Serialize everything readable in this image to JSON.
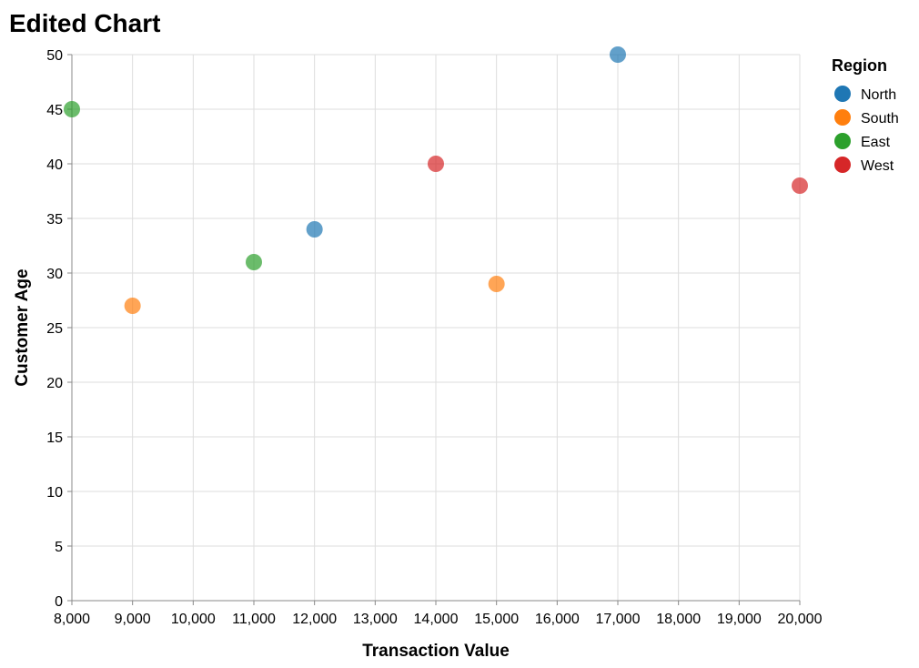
{
  "chart_data": {
    "type": "scatter",
    "title": "Edited Chart",
    "xlabel": "Transaction Value",
    "ylabel": "Customer Age",
    "xlim": [
      8000,
      20000
    ],
    "ylim": [
      0,
      50
    ],
    "x_ticks": [
      8000,
      9000,
      10000,
      11000,
      12000,
      13000,
      14000,
      15000,
      16000,
      17000,
      18000,
      19000,
      20000
    ],
    "x_tick_labels": [
      "8,000",
      "9,000",
      "10,000",
      "11,000",
      "12,000",
      "13,000",
      "14,000",
      "15,000",
      "16,000",
      "17,000",
      "18,000",
      "19,000",
      "20,000"
    ],
    "y_ticks": [
      0,
      5,
      10,
      15,
      20,
      25,
      30,
      35,
      40,
      45,
      50
    ],
    "y_tick_labels": [
      "0",
      "5",
      "10",
      "15",
      "20",
      "25",
      "30",
      "35",
      "40",
      "45",
      "50"
    ],
    "grid": true,
    "legend": {
      "title": "Region",
      "placement": "right"
    },
    "series": [
      {
        "name": "North",
        "color": "#1f77b4",
        "points": [
          {
            "x": 12000,
            "y": 34
          },
          {
            "x": 17000,
            "y": 50
          }
        ]
      },
      {
        "name": "South",
        "color": "#ff7f0e",
        "points": [
          {
            "x": 9000,
            "y": 27
          },
          {
            "x": 15000,
            "y": 29
          }
        ]
      },
      {
        "name": "East",
        "color": "#2ca02c",
        "points": [
          {
            "x": 8000,
            "y": 45
          },
          {
            "x": 11000,
            "y": 31
          }
        ]
      },
      {
        "name": "West",
        "color": "#d62728",
        "points": [
          {
            "x": 14000,
            "y": 40
          },
          {
            "x": 20000,
            "y": 38
          }
        ]
      }
    ]
  }
}
